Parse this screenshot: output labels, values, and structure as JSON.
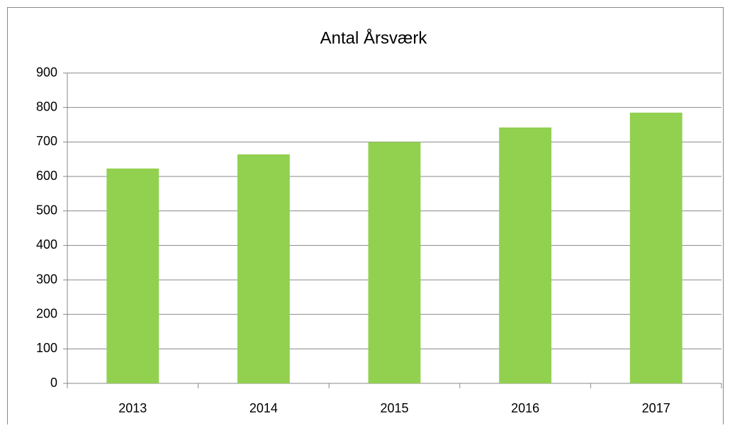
{
  "chart_data": {
    "type": "bar",
    "title": "Antal Årsværk",
    "categories": [
      "2013",
      "2014",
      "2015",
      "2016",
      "2017"
    ],
    "values": [
      623,
      664,
      700,
      742,
      785
    ],
    "color": "#92d050",
    "ylim": [
      0,
      900
    ],
    "yticks": [
      0,
      100,
      200,
      300,
      400,
      500,
      600,
      700,
      800,
      900
    ],
    "grid": true
  }
}
